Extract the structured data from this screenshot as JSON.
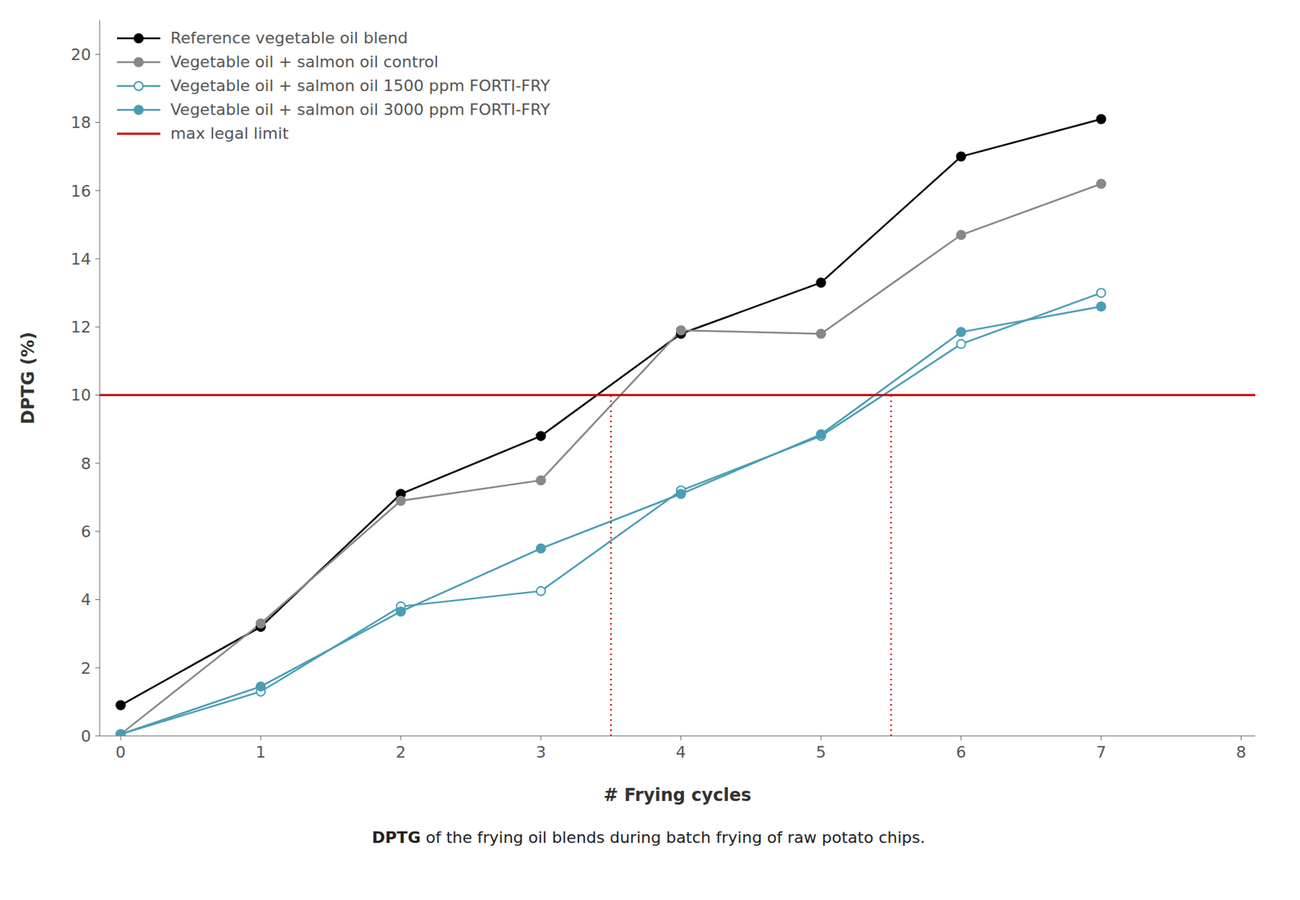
{
  "chart_data": {
    "type": "line",
    "xlabel": "# Frying cycles",
    "ylabel": "DPTG (%)",
    "x": [
      0,
      1,
      2,
      3,
      4,
      5,
      6,
      7
    ],
    "series": [
      {
        "name": "Reference vegetable oil blend",
        "color": "#000000",
        "marker": "circle",
        "values": [
          0.9,
          3.2,
          7.1,
          8.8,
          11.8,
          13.3,
          17.0,
          18.1
        ]
      },
      {
        "name": "Vegetable oil + salmon oil control",
        "color": "#888888",
        "marker": "circle",
        "values": [
          0.05,
          3.3,
          6.9,
          7.5,
          11.9,
          11.8,
          14.7,
          16.2
        ]
      },
      {
        "name": "Vegetable oil + salmon oil 1500 ppm FORTI-FRY",
        "color": "#4a9db5",
        "marker": "ring",
        "values": [
          0.05,
          1.3,
          3.8,
          4.25,
          7.2,
          8.8,
          11.5,
          13.0
        ]
      },
      {
        "name": "Vegetable oil + salmon oil 3000 ppm FORTI-FRY",
        "color": "#4a9db5",
        "marker": "circle",
        "values": [
          0.05,
          1.45,
          3.65,
          5.5,
          7.1,
          8.85,
          11.85,
          12.6
        ]
      }
    ],
    "reference_lines": [
      {
        "y": 10.0,
        "label": "max legal limit",
        "color": "#cc0000"
      }
    ],
    "vertical_lines": [
      {
        "x": 3.5,
        "y_bottom": 0,
        "y_top": 10,
        "color": "#cc0000",
        "line_style": "dotted"
      },
      {
        "x": 5.5,
        "y_bottom": 0,
        "y_top": 10,
        "color": "#cc0000",
        "line_style": "dotted"
      }
    ],
    "xlim": [
      -0.15,
      8.1
    ],
    "ylim": [
      0,
      21
    ],
    "xticks": [
      0,
      1,
      2,
      3,
      4,
      5,
      6,
      7,
      8
    ],
    "yticks": [
      0,
      2,
      4,
      6,
      8,
      10,
      12,
      14,
      16,
      18,
      20
    ],
    "grid": false,
    "legend": "upper left",
    "caption": "DPTG of the frying oil blends during batch frying of raw potato chips."
  }
}
